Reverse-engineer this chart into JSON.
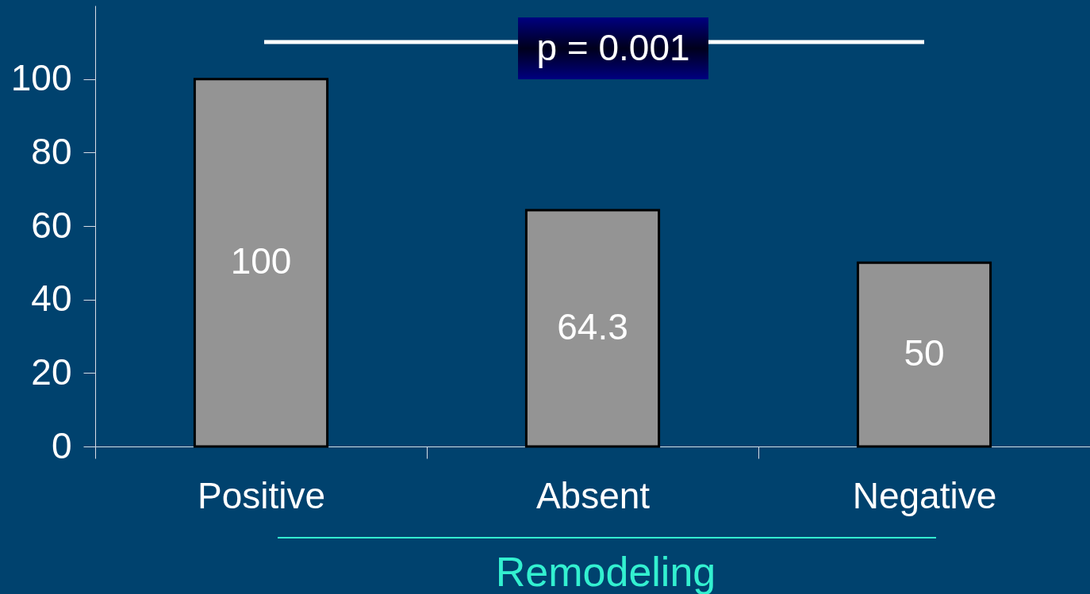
{
  "chart_data": {
    "type": "bar",
    "categories": [
      "Positive",
      "Absent",
      "Negative"
    ],
    "values": [
      100,
      64.3,
      50
    ],
    "color": "#949494",
    "xlabel": "Remodeling",
    "ylim": [
      0,
      120
    ],
    "yticks": [
      0,
      20,
      40,
      60,
      80,
      100
    ],
    "data_labels": true,
    "grid": false,
    "annotations": [
      "p = 0.001"
    ]
  }
}
